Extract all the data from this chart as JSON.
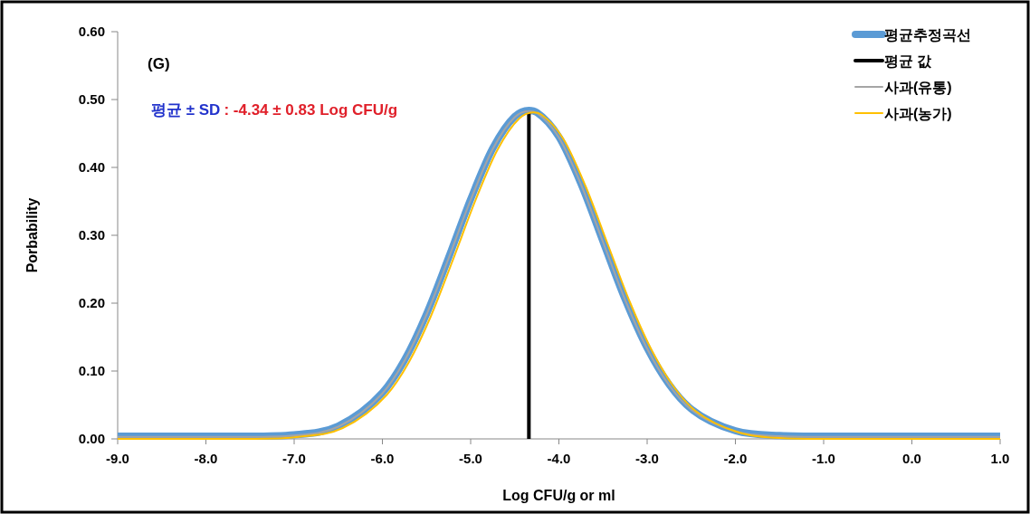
{
  "chart_data": {
    "type": "line",
    "xlabel": "Log CFU/g or ml",
    "ylabel": "Porbability",
    "annotations": [
      "(G)",
      "평균 ± SD",
      ": -4.34 ± 0.83 Log CFU/g"
    ],
    "xlim": [
      -9.0,
      1.0
    ],
    "xticks": [
      {
        "value": -9,
        "label": "-9.0"
      },
      {
        "value": -8,
        "label": "-8.0"
      },
      {
        "value": -7,
        "label": "-7.0"
      },
      {
        "value": -6,
        "label": "-6.0"
      },
      {
        "value": -5,
        "label": "-5.0"
      },
      {
        "value": -4,
        "label": "-4.0"
      },
      {
        "value": -3,
        "label": "-3.0"
      },
      {
        "value": -2,
        "label": "-2.0"
      },
      {
        "value": -1,
        "label": "-1.0"
      },
      {
        "value": 0,
        "label": "0.0"
      },
      {
        "value": 1,
        "label": "1.0"
      }
    ],
    "ylim": [
      0,
      0.6
    ],
    "yticks": [
      {
        "value": 0,
        "label": "0.00"
      },
      {
        "value": 0.1,
        "label": "0.10"
      },
      {
        "value": 0.2,
        "label": "0.20"
      },
      {
        "value": 0.3,
        "label": "0.30"
      },
      {
        "value": 0.4,
        "label": "0.40"
      },
      {
        "value": 0.5,
        "label": "0.50"
      },
      {
        "value": 0.6,
        "label": "0.60"
      }
    ],
    "grid": false,
    "legend": "top right",
    "series": [
      {
        "name": "평균추정곡선",
        "color": "#5b9bd5",
        "x": [
          -9,
          -8,
          -7.5,
          -7,
          -6.5,
          -6,
          -5.75,
          -5.5,
          -5.25,
          -5,
          -4.75,
          -4.5,
          -4.34,
          -4.25,
          -4,
          -3.75,
          -3.5,
          -3.25,
          -3,
          -2.75,
          -2.5,
          -2,
          -1.5,
          -1,
          0,
          1
        ],
        "values": [
          0.004,
          0.004,
          0.004,
          0.006,
          0.019,
          0.068,
          0.116,
          0.184,
          0.267,
          0.353,
          0.428,
          0.475,
          0.484,
          0.481,
          0.445,
          0.376,
          0.291,
          0.206,
          0.134,
          0.08,
          0.044,
          0.012,
          0.005,
          0.004,
          0.004,
          0.004
        ]
      },
      {
        "name": "평균 값",
        "color": "#000000",
        "x": [
          -4.34,
          -4.34
        ],
        "values": [
          0,
          0.48
        ]
      },
      {
        "name": "사과(유통)",
        "color": "#a5a5a5",
        "x": [
          -9,
          -8,
          -7.5,
          -7,
          -6.5,
          -6,
          -5.75,
          -5.5,
          -5.25,
          -5,
          -4.75,
          -4.5,
          -4.34,
          -4.25,
          -4,
          -3.75,
          -3.5,
          -3.25,
          -3,
          -2.75,
          -2.5,
          -2,
          -1.5,
          -1,
          0,
          1
        ],
        "values": [
          0.003,
          0.003,
          0.003,
          0.005,
          0.018,
          0.067,
          0.115,
          0.183,
          0.266,
          0.352,
          0.427,
          0.474,
          0.483,
          0.48,
          0.444,
          0.375,
          0.29,
          0.205,
          0.133,
          0.079,
          0.043,
          0.011,
          0.004,
          0.003,
          0.003,
          0.003
        ]
      },
      {
        "name": "사과(농가)",
        "color": "#ffc000",
        "x": [
          -9,
          -8,
          -7.45,
          -6.95,
          -6.45,
          -5.95,
          -5.7,
          -5.45,
          -5.2,
          -4.95,
          -4.7,
          -4.45,
          -4.29,
          -4.2,
          -3.95,
          -3.7,
          -3.45,
          -3.2,
          -2.95,
          -2.7,
          -2.45,
          -1.95,
          -1.45,
          -0.95,
          0,
          1
        ],
        "values": [
          0,
          0,
          0,
          0.003,
          0.016,
          0.065,
          0.113,
          0.181,
          0.264,
          0.35,
          0.425,
          0.472,
          0.481,
          0.478,
          0.442,
          0.373,
          0.288,
          0.203,
          0.131,
          0.077,
          0.041,
          0.009,
          0.001,
          0,
          0,
          0
        ]
      }
    ]
  }
}
